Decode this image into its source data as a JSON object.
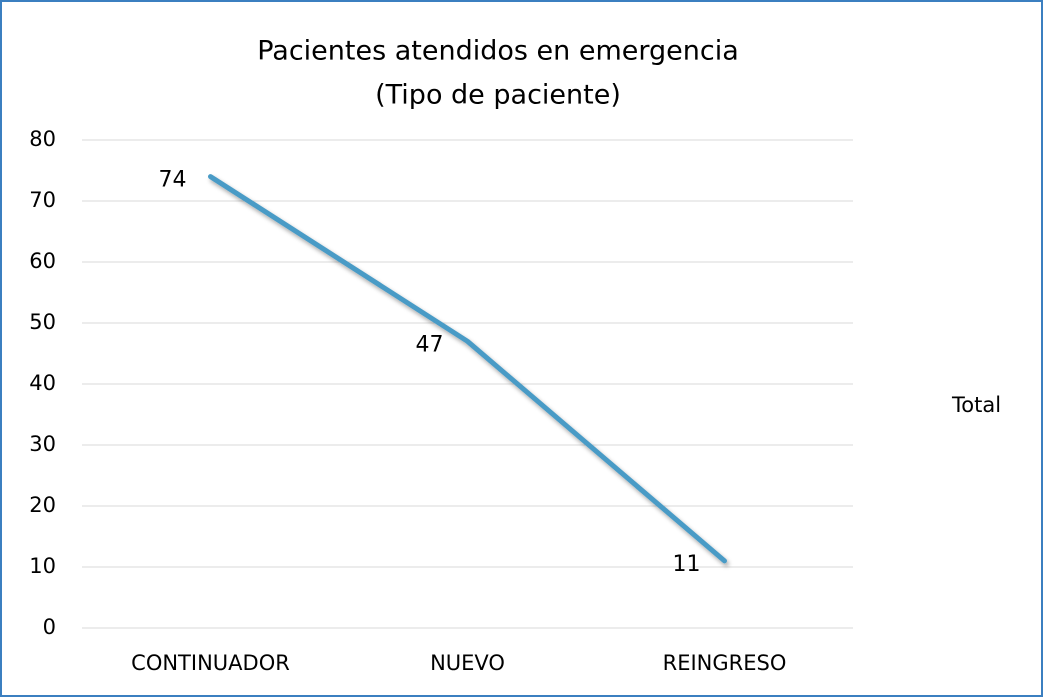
{
  "chart_data": {
    "type": "line",
    "title": "Pacientes atendidos en emergencia",
    "subtitle": "(Tipo de paciente)",
    "categories": [
      "CONTINUADOR",
      "NUEVO",
      "REINGRESO"
    ],
    "series": [
      {
        "name": "Total",
        "color": "#4a9bc6",
        "values": [
          74,
          47,
          11
        ]
      }
    ],
    "ylim": [
      0,
      80
    ],
    "yticks": [
      0,
      10,
      20,
      30,
      40,
      50,
      60,
      70,
      80
    ],
    "grid": true,
    "legend": "right"
  }
}
